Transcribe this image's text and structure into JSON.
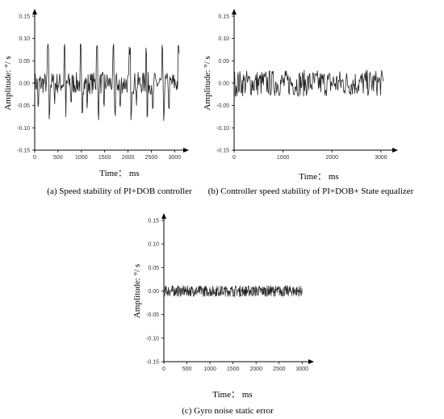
{
  "chart_data": [
    {
      "type": "line",
      "title": "",
      "caption": "(a) Speed stability of PI+DOB controller",
      "xlabel": "Time： ms",
      "ylabel": "Amplitude: °/ s",
      "xlim": [
        0,
        3150
      ],
      "ylim": [
        -0.15,
        0.15
      ],
      "xticks": [
        "0",
        "500",
        "1000",
        "1500",
        "2000",
        "2500",
        "3000"
      ],
      "yticks": [
        "0.15",
        "0.10",
        "0.05",
        "0.00",
        "-0.05",
        "-0.10",
        "-0.15"
      ],
      "grid": false,
      "signal": {
        "x_end": 3100,
        "baseline": 0.0,
        "noise_amplitude": 0.025,
        "peak_period": 350,
        "peak_high": 0.09,
        "peak_low": -0.085
      }
    },
    {
      "type": "line",
      "title": "",
      "caption": "(b) Controller speed stability of PI+DOB+ State equalizer",
      "xlabel": "Time： ms",
      "ylabel": "Amplitude: °/ s",
      "xlim": [
        0,
        3200
      ],
      "ylim": [
        -0.15,
        0.15
      ],
      "xticks": [
        "0",
        "1000",
        "2000",
        "3000"
      ],
      "yticks": [
        "0.15",
        "0.10",
        "0.05",
        "0.00",
        "-0.05",
        "-0.10",
        "-0.15"
      ],
      "grid": false,
      "signal": {
        "x_end": 3050,
        "baseline": 0.0,
        "noise_amplitude": 0.03
      }
    },
    {
      "type": "line",
      "title": "",
      "caption": "(c) Gyro noise static error",
      "xlabel": "Time： ms",
      "ylabel": "Amplitude: °/ s",
      "xlim": [
        0,
        3100
      ],
      "ylim": [
        -0.15,
        0.15
      ],
      "xticks": [
        "0",
        "500",
        "1000",
        "1500",
        "2000",
        "2500",
        "3000"
      ],
      "yticks": [
        "0.15",
        "0.10",
        "0.05",
        "0.00",
        "-0.05",
        "-0.10",
        "-0.15"
      ],
      "grid": false,
      "signal": {
        "x_end": 3000,
        "baseline": 0.0,
        "noise_amplitude": 0.012
      }
    }
  ]
}
